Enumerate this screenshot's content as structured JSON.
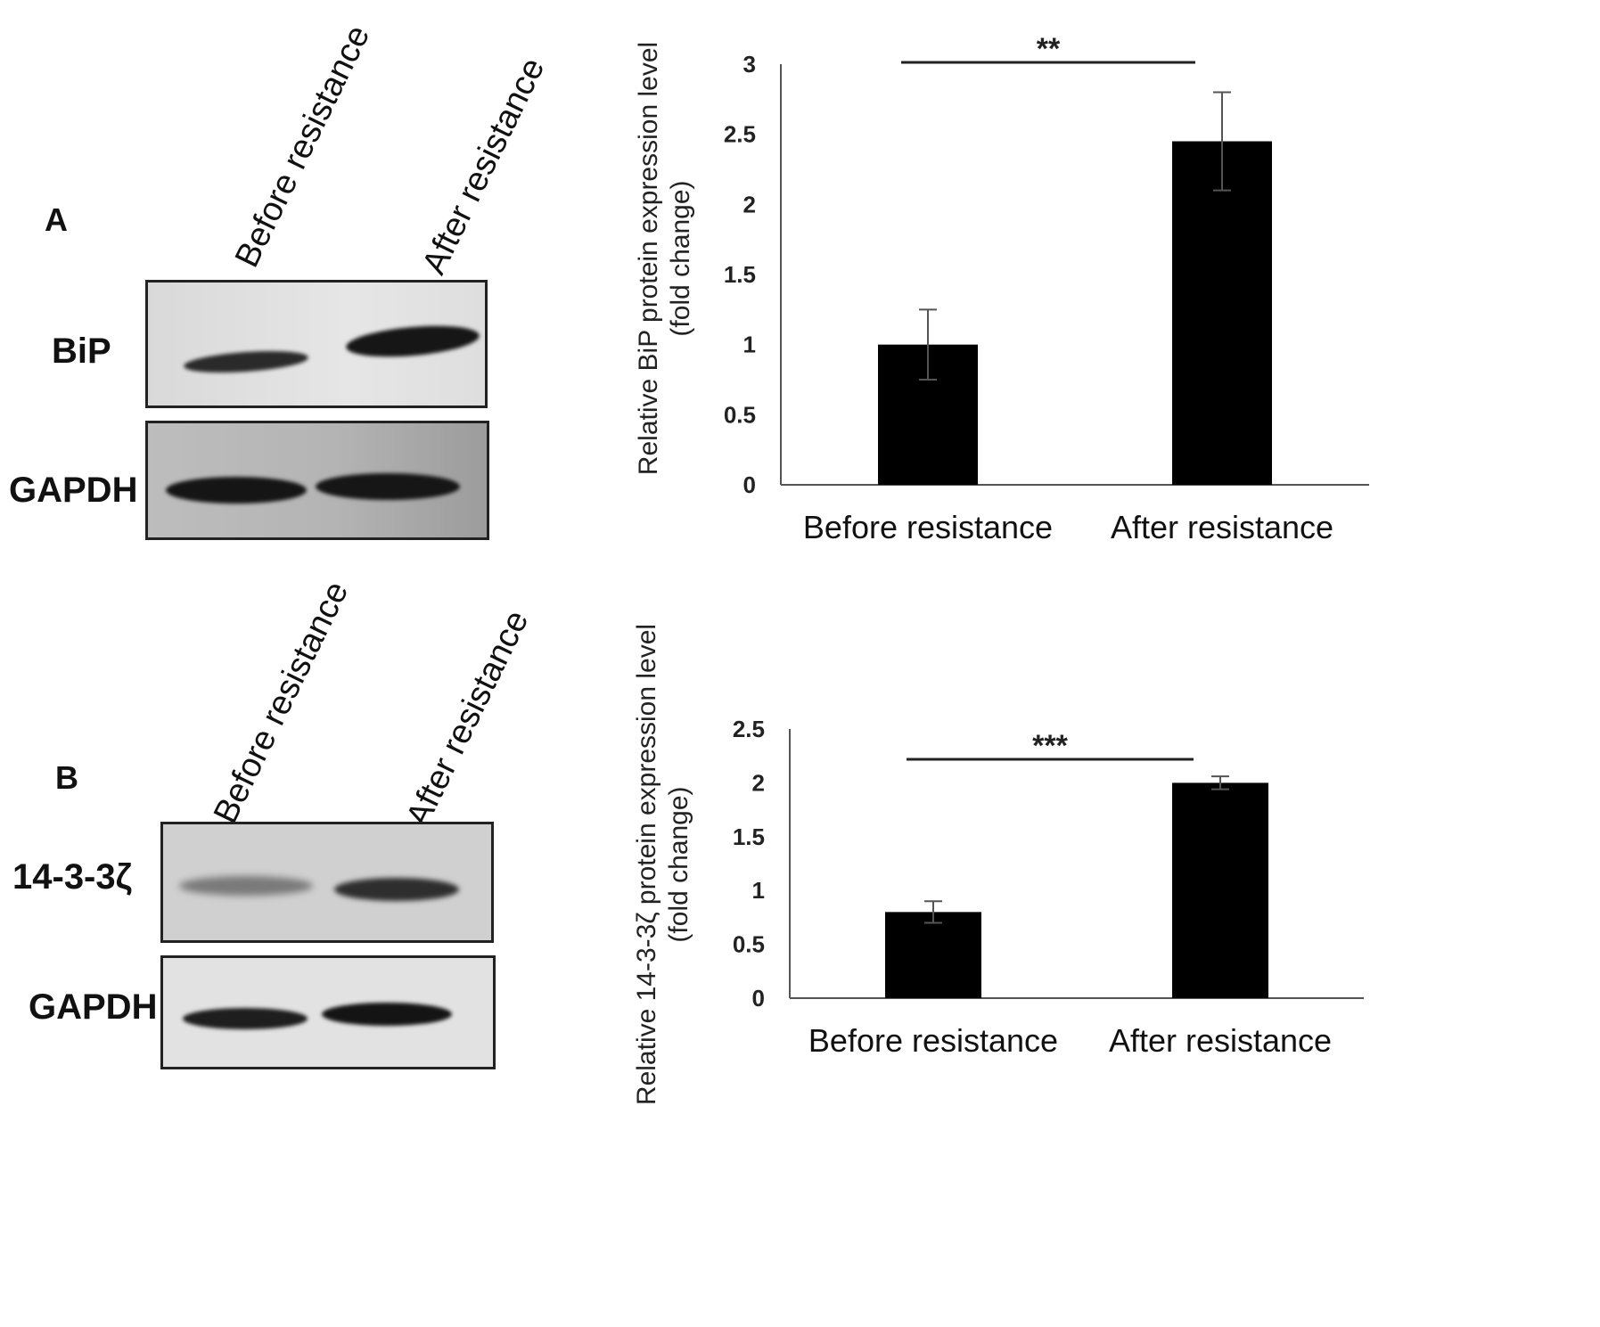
{
  "panelA": {
    "letter": "A",
    "lanes": [
      "Before resistance",
      "After resistance"
    ],
    "blot_labels": [
      "BiP",
      "GAPDH"
    ]
  },
  "panelB": {
    "letter": "B",
    "lanes": [
      "Before resistance",
      "After resistance"
    ],
    "blot_labels": [
      "14-3-3ζ",
      "GAPDH"
    ]
  },
  "chart_data": [
    {
      "type": "bar",
      "categories": [
        "Before resistance",
        "After resistance"
      ],
      "values": [
        1.0,
        2.45
      ],
      "errors": [
        0.25,
        0.35
      ],
      "ylabel_lines": [
        "Relative BiP protein expression level",
        "(fold change)"
      ],
      "ylim": [
        0,
        3
      ],
      "yticks": [
        0,
        0.5,
        1,
        1.5,
        2,
        2.5,
        3
      ],
      "yticklabels": [
        "0",
        "0.5",
        "1",
        "1.5",
        "2",
        "2.5",
        "3"
      ],
      "significance": "**",
      "grid": false,
      "bar_color": "#000000"
    },
    {
      "type": "bar",
      "categories": [
        "Before resistance",
        "After resistance"
      ],
      "values": [
        0.8,
        2.0
      ],
      "errors": [
        0.1,
        0.06
      ],
      "ylabel_lines": [
        "Relative 14-3-3ζ protein expression level",
        "(fold change)"
      ],
      "ylim": [
        0,
        2.5
      ],
      "yticks": [
        0,
        0.5,
        1,
        1.5,
        2,
        2.5
      ],
      "yticklabels": [
        "0",
        "0.5",
        "1",
        "1.5",
        "2",
        "2.5"
      ],
      "significance": "***",
      "grid": false,
      "bar_color": "#000000"
    }
  ]
}
